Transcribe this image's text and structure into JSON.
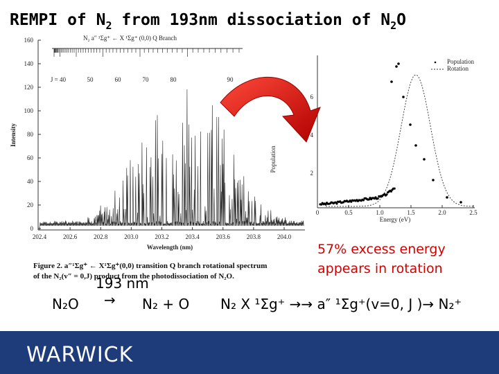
{
  "title": {
    "parts": [
      "REMPI of N",
      "2",
      " from 193nm dissociation of N",
      "2",
      "O"
    ]
  },
  "spectrum_figure": {
    "branch_label": "N₂ a″ ¹Σg⁺ ← X ¹Σg⁺ (0,0) Q Branch",
    "j_labels": [
      "J = 40",
      "50",
      "60",
      "70",
      "80",
      "90"
    ],
    "y_label": "Intensity",
    "y_ticks": [
      "0",
      "20",
      "40",
      "60",
      "80",
      "100",
      "120",
      "140",
      "160"
    ],
    "x_label": "Wavelength (nm)",
    "x_ticks": [
      "202.4",
      "202.6",
      "202.8",
      "203.0",
      "203.2",
      "203.4",
      "203.6",
      "203.8",
      "204.0"
    ],
    "caption": [
      "Figure 2.  a″¹Σg⁺ ← X¹Σg⁺(0,0) transition Q branch rotational spectrum",
      "of the N₂(v″ = 0,J) product from the photodissociation of N₂O."
    ]
  },
  "population_figure": {
    "y_label": "Population",
    "y_ticks": [
      "2",
      "4",
      "6"
    ],
    "x_label": "Energy (eV)",
    "x_ticks": [
      "0",
      "0.5",
      "1.0",
      "1.5",
      "2.0",
      "2.5"
    ],
    "legend": [
      "Population",
      "Rotation"
    ]
  },
  "annotation": [
    "57% excess energy",
    "appears in rotation"
  ],
  "equation": {
    "reactant": "N₂O",
    "arrow_label": "193 nm",
    "arrow": "→",
    "products": "N₂ + O",
    "scheme": "N₂ X ¹Σg⁺ →→ a″ ¹Σg⁺(v=0, J )→ N₂⁺"
  },
  "footer": {
    "logo": "WARWICK"
  }
}
